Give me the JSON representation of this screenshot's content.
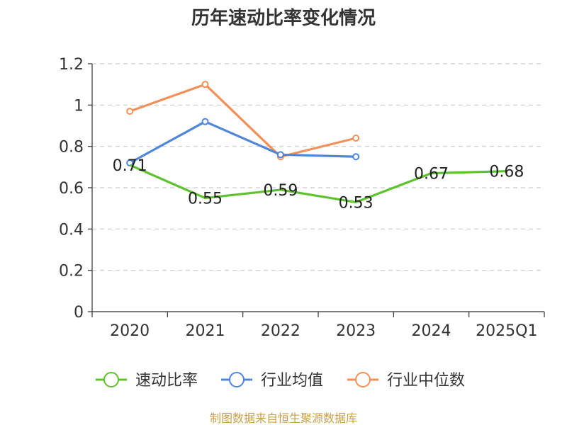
{
  "chart_data": {
    "type": "line",
    "title": "历年速动比率变化情况",
    "categories": [
      "2020",
      "2021",
      "2022",
      "2023",
      "2024",
      "2025Q1"
    ],
    "ylim": [
      0,
      1.2
    ],
    "yticks": [
      "0",
      "0.2",
      "0.4",
      "0.6",
      "0.8",
      "1",
      "1.2"
    ],
    "ytick_values": [
      0,
      0.2,
      0.4,
      0.6,
      0.8,
      1.0,
      1.2
    ],
    "grid": true,
    "series": [
      {
        "name": "速动比率",
        "color": "#5dc22c",
        "values": [
          0.71,
          0.55,
          0.59,
          0.53,
          0.67,
          0.68
        ],
        "labels": [
          "0.71",
          "0.55",
          "0.59",
          "0.53",
          "0.67",
          "0.68"
        ]
      },
      {
        "name": "行业均值",
        "color": "#4f86d9",
        "values": [
          0.72,
          0.92,
          0.76,
          0.75,
          null,
          null
        ]
      },
      {
        "name": "行业中位数",
        "color": "#f39058",
        "values": [
          0.97,
          1.1,
          0.75,
          0.84,
          null,
          null
        ]
      }
    ],
    "legend_position": "bottom"
  },
  "source": "制图数据来自恒生聚源数据库"
}
